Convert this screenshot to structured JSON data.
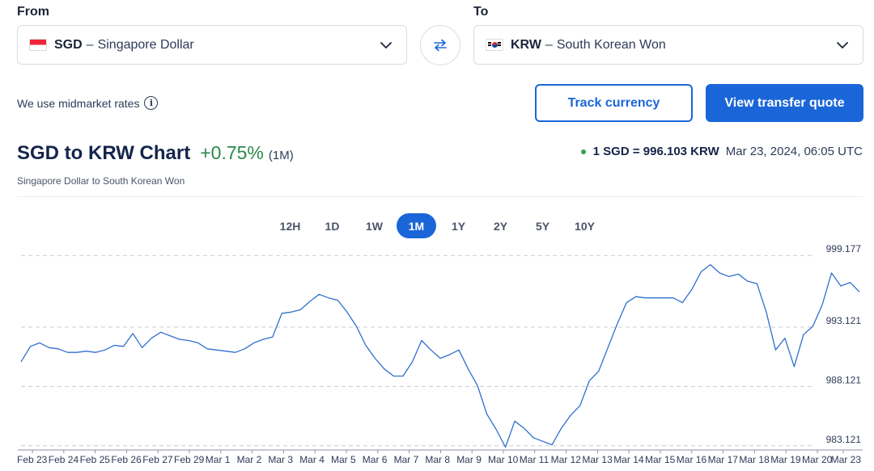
{
  "from": {
    "label": "From",
    "code": "SGD",
    "name": "Singapore Dollar",
    "flag_icon": "singapore-flag-icon"
  },
  "to": {
    "label": "To",
    "code": "KRW",
    "name": "South Korean Won",
    "flag_icon": "south-korea-flag-icon"
  },
  "dash": "–",
  "swap_icon": "swap-arrows-icon",
  "midmarket_text": "We use midmarket rates",
  "info_glyph": "i",
  "buttons": {
    "track": "Track currency",
    "quote": "View transfer quote"
  },
  "header": {
    "title": "SGD to KRW Chart",
    "change": "+0.75%",
    "period_label": "(1M)",
    "subtitle": "Singapore Dollar to South Korean Won"
  },
  "rate": {
    "value": "1 SGD = 996.103 KRW",
    "timestamp": "Mar 23, 2024, 06:05 UTC"
  },
  "periods": [
    "12H",
    "1D",
    "1W",
    "1M",
    "1Y",
    "2Y",
    "5Y",
    "10Y"
  ],
  "active_period": "1M",
  "colors": {
    "accent": "#1a66d9",
    "positive": "#2b8a4a",
    "line": "#2f6fce",
    "live_dot": "#2fa24a"
  },
  "chart_data": {
    "type": "line",
    "x_ticks": [
      "Feb 23",
      "Feb 24",
      "Feb 25",
      "Feb 26",
      "Feb 27",
      "Feb 29",
      "Mar 1",
      "Mar 2",
      "Mar 3",
      "Mar 4",
      "Mar 5",
      "Mar 6",
      "Mar 7",
      "Mar 8",
      "Mar 9",
      "Mar 10",
      "Mar 11",
      "Mar 12",
      "Mar 13",
      "Mar 14",
      "Mar 15",
      "Mar 16",
      "Mar 17",
      "Mar 18",
      "Mar 19",
      "Mar 20",
      "Mar 23"
    ],
    "y_ticks": [
      "999.177",
      "993.121",
      "988.121",
      "983.121"
    ],
    "y_tick_values": [
      999.177,
      993.121,
      988.121,
      983.121
    ],
    "ylim": [
      982.9,
      999.6
    ],
    "grid": "dashed horizontal",
    "series": [
      {
        "values": [
          990.2,
          991.5,
          991.8,
          991.4,
          991.3,
          991.0,
          991.0,
          991.1,
          991.0,
          991.2,
          991.6,
          991.5,
          992.6,
          991.4,
          992.2,
          992.7,
          992.4,
          992.1,
          992.0,
          991.8,
          991.3,
          991.2,
          991.1,
          991.0,
          991.3,
          991.8,
          992.1,
          992.3,
          994.3,
          994.4,
          994.6,
          995.3,
          995.9,
          995.6,
          995.4,
          994.4,
          993.2,
          991.6,
          990.5,
          989.6,
          989.0,
          989.0,
          990.2,
          992.0,
          991.2,
          990.5,
          990.8,
          991.2,
          989.6,
          988.2,
          985.8,
          984.5,
          983.0,
          985.2,
          984.6,
          983.8,
          983.5,
          983.2,
          984.6,
          985.7,
          986.5,
          988.6,
          989.4,
          991.4,
          993.4,
          995.2,
          995.7,
          995.6,
          995.6,
          995.6,
          995.6,
          995.2,
          996.3,
          997.8,
          998.4,
          997.7,
          997.4,
          997.6,
          997.0,
          996.8,
          994.4,
          991.2,
          992.2,
          989.8,
          992.5,
          993.2,
          995.0,
          997.7,
          996.6,
          996.9,
          996.1
        ]
      }
    ]
  }
}
